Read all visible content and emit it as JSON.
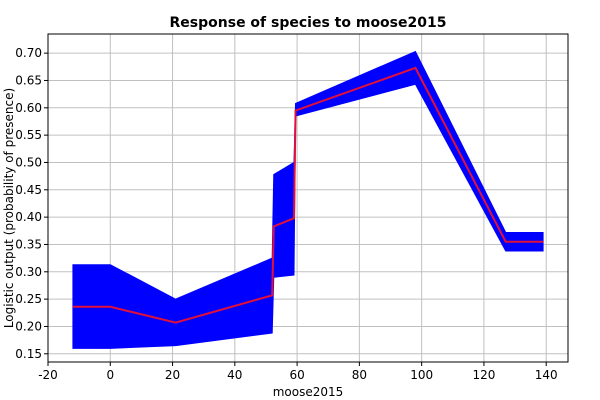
{
  "chart_data": {
    "type": "line",
    "title": "Response of species to moose2015",
    "xlabel": "moose2015",
    "ylabel": "Logistic output (probability of presence)",
    "xlim": [
      -20,
      147
    ],
    "ylim": [
      0.135,
      0.735
    ],
    "xticks": [
      -20,
      0,
      20,
      40,
      60,
      80,
      100,
      120,
      140
    ],
    "xtick_labels": [
      "-20",
      "0",
      "20",
      "40",
      "60",
      "80",
      "100",
      "120",
      "140"
    ],
    "yticks": [
      0.15,
      0.2,
      0.25,
      0.3,
      0.35,
      0.4,
      0.45,
      0.5,
      0.55,
      0.6,
      0.65,
      0.7
    ],
    "ytick_labels": [
      "0.15",
      "0.20",
      "0.25",
      "0.30",
      "0.35",
      "0.40",
      "0.45",
      "0.50",
      "0.55",
      "0.60",
      "0.65",
      "0.70"
    ],
    "grid": true,
    "series": [
      {
        "color": "#e0103a",
        "x": [
          -12,
          0,
          21,
          52,
          52.5,
          59,
          59.5,
          98,
          127,
          139
        ],
        "y": [
          0.236,
          0.236,
          0.207,
          0.257,
          0.383,
          0.398,
          0.595,
          0.673,
          0.355,
          0.355
        ]
      }
    ],
    "band": {
      "color": "#0000ff",
      "x": [
        -12,
        0,
        21,
        52,
        52.5,
        59,
        59.5,
        98,
        127,
        139
      ],
      "upper": [
        0.313,
        0.313,
        0.25,
        0.325,
        0.478,
        0.5,
        0.608,
        0.703,
        0.372,
        0.372
      ],
      "lower": [
        0.16,
        0.16,
        0.165,
        0.188,
        0.29,
        0.294,
        0.585,
        0.643,
        0.338,
        0.338
      ]
    }
  }
}
